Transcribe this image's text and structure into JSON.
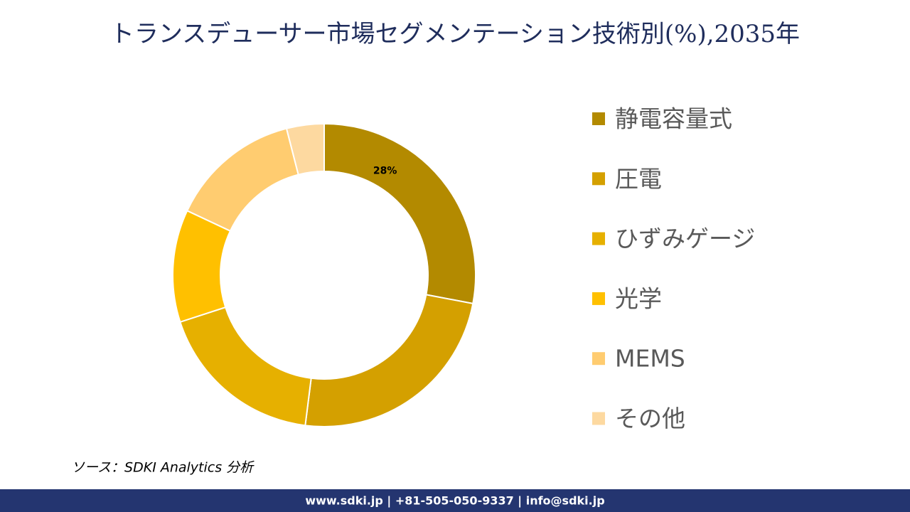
{
  "chart_data": {
    "type": "donut",
    "title": "トランスデューサー市場セグメンテーション技術別(%),2035年",
    "categories": [
      "静電容量式",
      "圧電",
      "ひずみゲージ",
      "光学",
      "MEMS",
      "その他"
    ],
    "values": [
      28,
      24,
      18,
      12,
      14,
      4
    ],
    "value_labels": [
      "28%",
      null,
      null,
      null,
      null,
      null
    ],
    "colors": [
      "#B38A00",
      "#D4A000",
      "#E6B000",
      "#FFC000",
      "#FFCC70",
      "#FDD9A0"
    ]
  },
  "source": "ソース：SDKI Analytics 分析",
  "footer": "www.sdki.jp | +81-505-050-9337 | info@sdki.jp"
}
